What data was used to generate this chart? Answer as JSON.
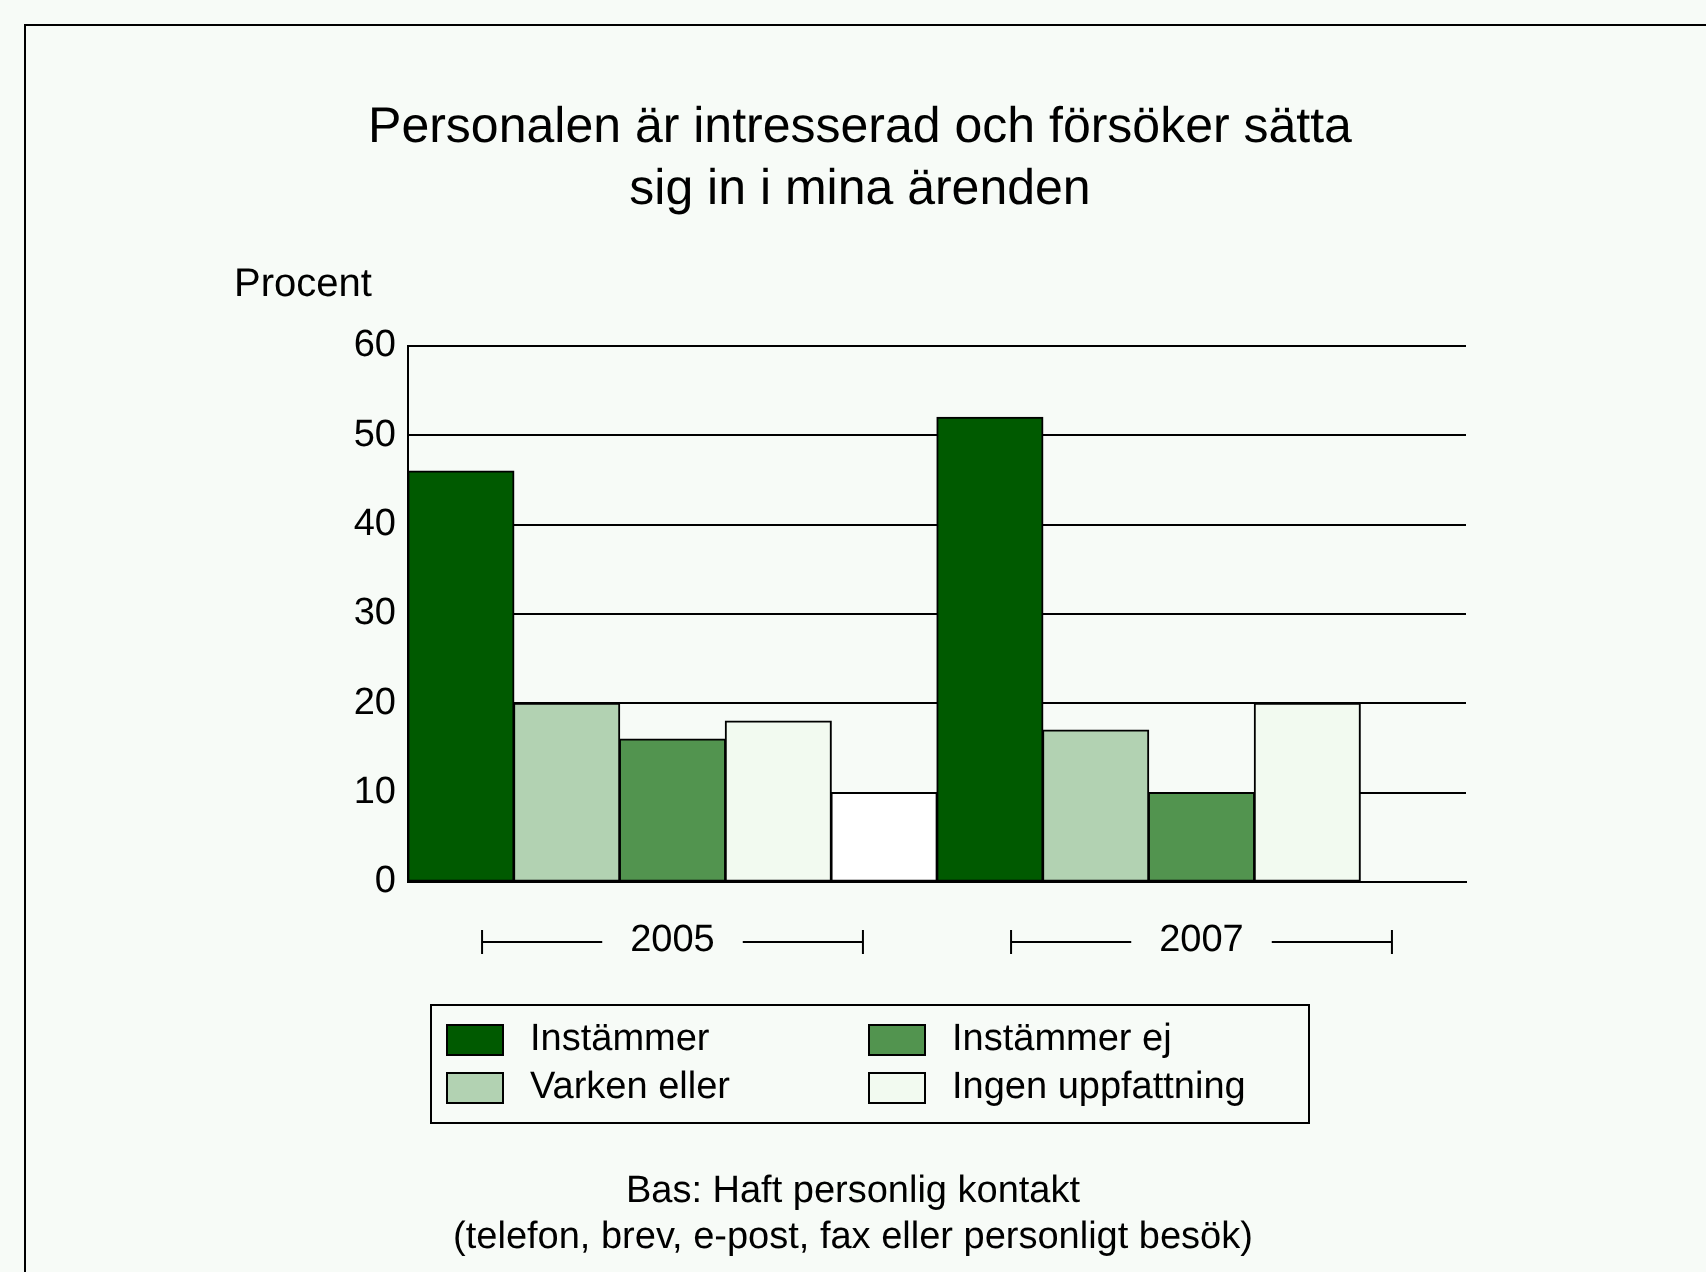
{
  "chart_data": {
    "type": "bar",
    "title": "Personalen är intresserad och försöker sätta sig in i mina ärenden",
    "ylabel": "Procent",
    "categories": [
      "2005",
      "2007"
    ],
    "series": [
      {
        "name": "Instämmer",
        "color": "#005a00",
        "values": [
          46,
          52
        ]
      },
      {
        "name": "Varken eller",
        "color": "#b2d2b2",
        "values": [
          20,
          17
        ]
      },
      {
        "name": "Instämmer ej",
        "color": "#52944f",
        "values": [
          16,
          10
        ]
      },
      {
        "name": "Ingen uppfattning",
        "color": "#f2faf0",
        "values": [
          18,
          20
        ]
      },
      {
        "color": "#ffffff",
        "values": [
          10,
          null
        ]
      }
    ],
    "ylim": [
      0,
      60
    ],
    "yticks": [
      0,
      10,
      20,
      30,
      40,
      50,
      60
    ],
    "grid": "y",
    "legend": "bottom",
    "annotations": [
      "Bas: Haft personlig kontakt",
      "(telefon, brev, e-post, fax eller personligt besök)"
    ]
  }
}
